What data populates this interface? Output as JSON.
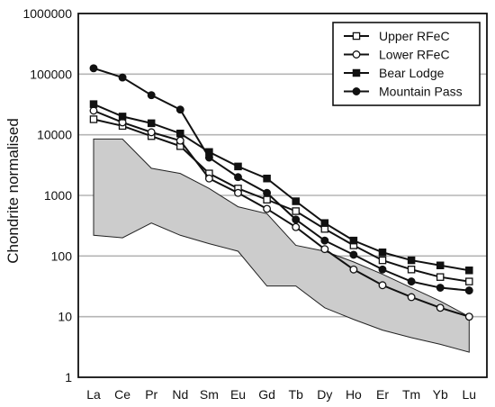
{
  "chart_data": {
    "type": "line",
    "title": "",
    "xlabel": "",
    "ylabel": "Chondrite normalised",
    "y_scale": "log",
    "ylim": [
      1,
      1000000
    ],
    "y_ticks": [
      "1",
      "10",
      "100",
      "1000",
      "10000",
      "100000",
      "1000000"
    ],
    "grid": "horizontal",
    "legend_position": "top-right",
    "categories": [
      "La",
      "Ce",
      "Pr",
      "Nd",
      "Sm",
      "Eu",
      "Gd",
      "Tb",
      "Dy",
      "Ho",
      "Er",
      "Tm",
      "Yb",
      "Lu"
    ],
    "envelope": {
      "color": "#cccccc",
      "upper": [
        8500,
        8500,
        2800,
        2300,
        1300,
        650,
        500,
        150,
        120,
        80,
        50,
        30,
        18,
        10
      ],
      "lower": [
        220,
        200,
        350,
        220,
        160,
        120,
        32,
        32,
        14,
        9,
        6,
        4.5,
        3.5,
        2.6
      ]
    },
    "series": [
      {
        "name": "Upper RFeC",
        "marker": "open-square",
        "values": [
          18000,
          14000,
          9500,
          6500,
          2300,
          1300,
          850,
          550,
          280,
          150,
          85,
          60,
          45,
          38
        ]
      },
      {
        "name": "Lower RFeC",
        "marker": "open-circle",
        "values": [
          25000,
          16000,
          11000,
          8000,
          1900,
          1100,
          600,
          300,
          130,
          60,
          33,
          21,
          14,
          10
        ]
      },
      {
        "name": "Bear Lodge",
        "marker": "filled-square",
        "values": [
          32000,
          20000,
          15500,
          10500,
          5200,
          3000,
          1900,
          800,
          350,
          180,
          115,
          85,
          70,
          58
        ]
      },
      {
        "name": "Mountain Pass",
        "marker": "filled-circle",
        "values": [
          125000,
          88000,
          45000,
          26000,
          4200,
          2000,
          1100,
          400,
          180,
          105,
          60,
          38,
          30,
          27
        ]
      }
    ]
  }
}
